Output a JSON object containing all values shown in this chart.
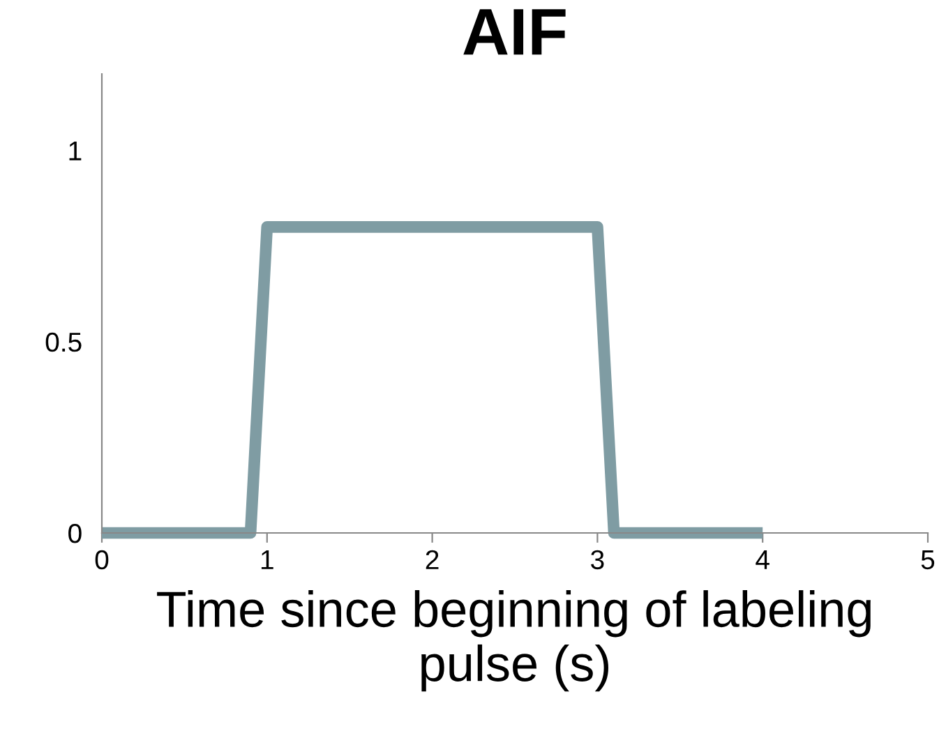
{
  "chart_data": {
    "type": "line",
    "title": "AIF",
    "xlabel": "Time since beginning of labeling pulse (s)",
    "series": [
      {
        "color": "#7f9ca3",
        "x": [
          0,
          0.9,
          1.0,
          3.0,
          3.1,
          4.0
        ],
        "values": [
          0,
          0,
          0.8,
          0.8,
          0,
          0
        ]
      }
    ],
    "xlim": [
      0,
      5
    ],
    "xticks": [
      0,
      1,
      2,
      3,
      4,
      5
    ],
    "ylim": [
      0,
      1.2
    ],
    "yticks": [
      0,
      0.5,
      1
    ],
    "grid": false,
    "legend": false,
    "marker": "none",
    "line_style": "solid"
  }
}
